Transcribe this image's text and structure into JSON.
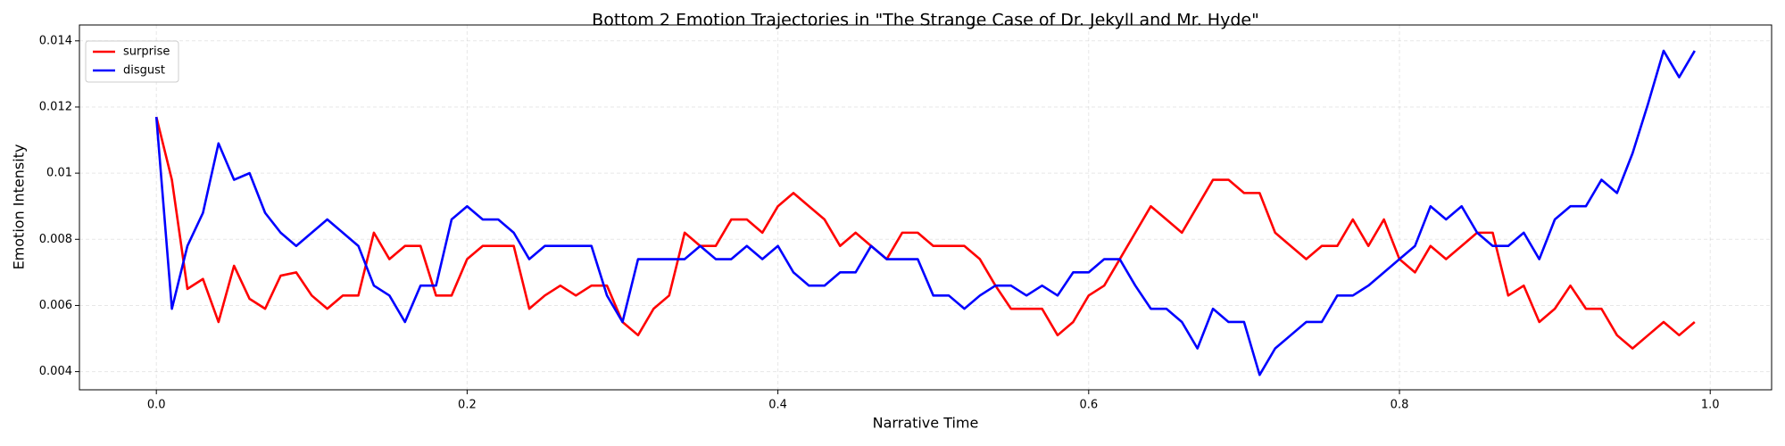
{
  "chart_data": {
    "type": "line",
    "title": "Bottom 2 Emotion Trajectories in \"The Strange Case of Dr. Jekyll and Mr. Hyde\"",
    "xlabel": "Narrative Time",
    "ylabel": "Emotion Intensity",
    "x": [
      0,
      0.01,
      0.02,
      0.03,
      0.04,
      0.05,
      0.06,
      0.07,
      0.08,
      0.09,
      0.1,
      0.11,
      0.12,
      0.13,
      0.14,
      0.15,
      0.16,
      0.17,
      0.18,
      0.19,
      0.2,
      0.21,
      0.22,
      0.23,
      0.24,
      0.25,
      0.26,
      0.27,
      0.28,
      0.29,
      0.3,
      0.31,
      0.32,
      0.33,
      0.34,
      0.35,
      0.36,
      0.37,
      0.38,
      0.39,
      0.4,
      0.41,
      0.42,
      0.43,
      0.44,
      0.45,
      0.46,
      0.47,
      0.48,
      0.49,
      0.5,
      0.51,
      0.52,
      0.53,
      0.54,
      0.55,
      0.56,
      0.57,
      0.58,
      0.59,
      0.6,
      0.61,
      0.62,
      0.63,
      0.64,
      0.65,
      0.66,
      0.67,
      0.68,
      0.69,
      0.7,
      0.71,
      0.72,
      0.73,
      0.74,
      0.75,
      0.76,
      0.77,
      0.78,
      0.79,
      0.8,
      0.81,
      0.82,
      0.83,
      0.84,
      0.85,
      0.86,
      0.87,
      0.88,
      0.89,
      0.9,
      0.91,
      0.92,
      0.93,
      0.94,
      0.95,
      0.96,
      0.97,
      0.98,
      0.99
    ],
    "series": [
      {
        "name": "surprise",
        "color": "#ff0000",
        "values": [
          0.0117,
          0.0098,
          0.0065,
          0.0068,
          0.0055,
          0.0072,
          0.0062,
          0.0059,
          0.0069,
          0.007,
          0.0063,
          0.0059,
          0.0063,
          0.0063,
          0.0082,
          0.0074,
          0.0078,
          0.0078,
          0.0063,
          0.0063,
          0.0074,
          0.0078,
          0.0078,
          0.0078,
          0.0059,
          0.0063,
          0.0066,
          0.0063,
          0.0066,
          0.0066,
          0.0055,
          0.0051,
          0.0059,
          0.0063,
          0.0082,
          0.0078,
          0.0078,
          0.0086,
          0.0086,
          0.0082,
          0.009,
          0.0094,
          0.009,
          0.0086,
          0.0078,
          0.0082,
          0.0078,
          0.0074,
          0.0082,
          0.0082,
          0.0078,
          0.0078,
          0.0078,
          0.0074,
          0.0066,
          0.0059,
          0.0059,
          0.0059,
          0.0051,
          0.0055,
          0.0063,
          0.0066,
          0.0074,
          0.0082,
          0.009,
          0.0086,
          0.0082,
          0.009,
          0.0098,
          0.0098,
          0.0094,
          0.0094,
          0.0082,
          0.0078,
          0.0074,
          0.0078,
          0.0078,
          0.0086,
          0.0078,
          0.0086,
          0.0074,
          0.007,
          0.0078,
          0.0074,
          0.0078,
          0.0082,
          0.0082,
          0.0063,
          0.0066,
          0.0055,
          0.0059,
          0.0066,
          0.0059,
          0.0059,
          0.0051,
          0.0047,
          0.0051,
          0.0055,
          0.0051,
          0.0055
        ]
      },
      {
        "name": "disgust",
        "color": "#0000ff",
        "values": [
          0.0117,
          0.0059,
          0.0078,
          0.0088,
          0.0109,
          0.0098,
          0.01,
          0.0088,
          0.0082,
          0.0078,
          0.0082,
          0.0086,
          0.0082,
          0.0078,
          0.0066,
          0.0063,
          0.0055,
          0.0066,
          0.0066,
          0.0086,
          0.009,
          0.0086,
          0.0086,
          0.0082,
          0.0074,
          0.0078,
          0.0078,
          0.0078,
          0.0078,
          0.0063,
          0.0055,
          0.0074,
          0.0074,
          0.0074,
          0.0074,
          0.0078,
          0.0074,
          0.0074,
          0.0078,
          0.0074,
          0.0078,
          0.007,
          0.0066,
          0.0066,
          0.007,
          0.007,
          0.0078,
          0.0074,
          0.0074,
          0.0074,
          0.0063,
          0.0063,
          0.0059,
          0.0063,
          0.0066,
          0.0066,
          0.0063,
          0.0066,
          0.0063,
          0.007,
          0.007,
          0.0074,
          0.0074,
          0.0066,
          0.0059,
          0.0059,
          0.0055,
          0.0047,
          0.0059,
          0.0055,
          0.0055,
          0.0039,
          0.0047,
          0.0051,
          0.0055,
          0.0055,
          0.0063,
          0.0063,
          0.0066,
          0.007,
          0.0074,
          0.0078,
          0.009,
          0.0086,
          0.009,
          0.0082,
          0.0078,
          0.0078,
          0.0082,
          0.0074,
          0.0086,
          0.009,
          0.009,
          0.0098,
          0.0094,
          0.0106,
          0.0121,
          0.0137,
          0.0129,
          0.0137
        ]
      }
    ],
    "xlim": [
      -0.0495,
      1.0395
    ],
    "ylim": [
      0.00345,
      0.01448
    ],
    "xticks": [
      {
        "value": 0,
        "label": "0.0"
      },
      0.2,
      0.4,
      0.6,
      0.8,
      {
        "value": 1,
        "label": "1.0"
      }
    ],
    "yticks": [
      0.004,
      0.006,
      0.008,
      0.01,
      0.012,
      0.014
    ],
    "grid": true,
    "legend": "upper-left"
  }
}
